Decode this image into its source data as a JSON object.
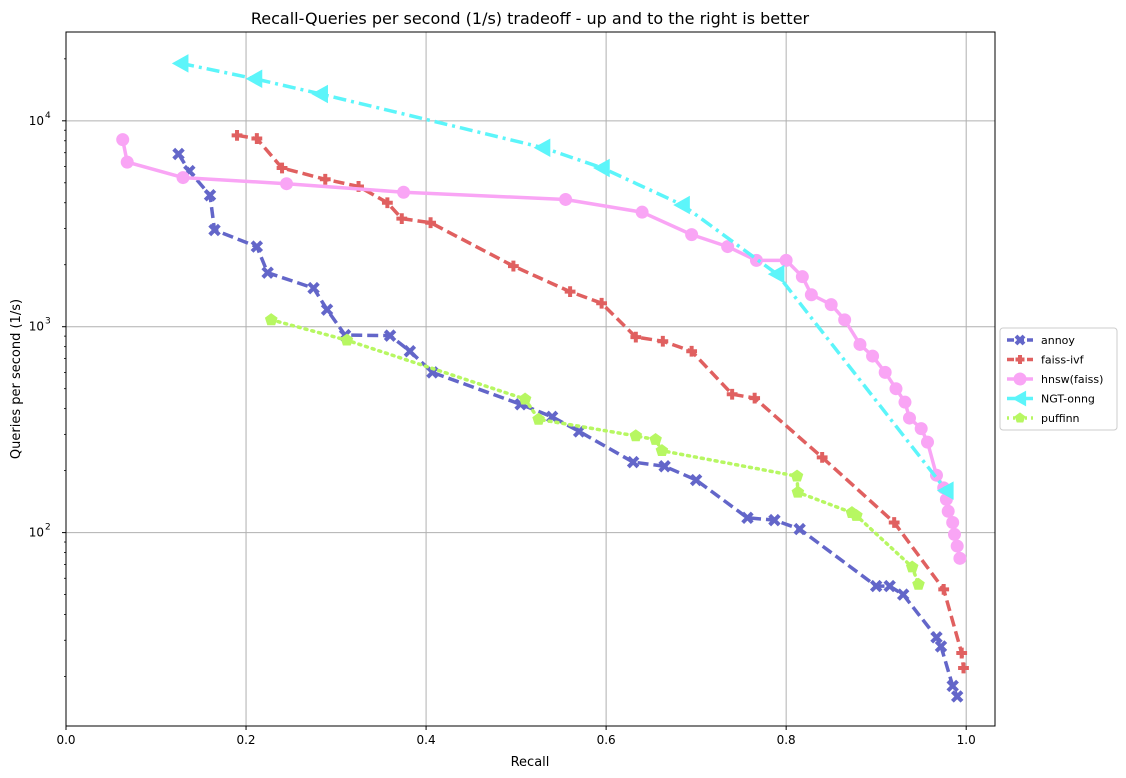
{
  "chart_data": {
    "type": "line",
    "title": "Recall-Queries per second (1/s) tradeoff - up and to the right is better",
    "xlabel": "Recall",
    "ylabel": "Queries per second (1/s)",
    "xlim": [
      0.0,
      1.032
    ],
    "ylim": [
      11.5,
      27000
    ],
    "yscale": "log",
    "grid": true,
    "legend_position": "right outside",
    "x_ticks": [
      {
        "value": 0.0,
        "label": "0.0"
      },
      {
        "value": 0.2,
        "label": "0.2"
      },
      {
        "value": 0.4,
        "label": "0.4"
      },
      {
        "value": 0.6,
        "label": "0.6"
      },
      {
        "value": 0.8,
        "label": "0.8"
      },
      {
        "value": 1.0,
        "label": "1.0"
      }
    ],
    "y_ticks": [
      {
        "value": 100,
        "base": "10",
        "exp": "2"
      },
      {
        "value": 1000,
        "base": "10",
        "exp": "3"
      },
      {
        "value": 10000,
        "base": "10",
        "exp": "4"
      }
    ],
    "series": [
      {
        "name": "annoy",
        "color": "#6366c9",
        "dash": "dashed",
        "marker": "x",
        "points": [
          [
            0.125,
            6900
          ],
          [
            0.137,
            5700
          ],
          [
            0.16,
            4350
          ],
          [
            0.165,
            2950
          ],
          [
            0.212,
            2450
          ],
          [
            0.224,
            1830
          ],
          [
            0.275,
            1540
          ],
          [
            0.29,
            1210
          ],
          [
            0.31,
            910
          ],
          [
            0.36,
            905
          ],
          [
            0.382,
            760
          ],
          [
            0.407,
            600
          ],
          [
            0.505,
            420
          ],
          [
            0.54,
            365
          ],
          [
            0.57,
            310
          ],
          [
            0.63,
            220
          ],
          [
            0.665,
            210
          ],
          [
            0.7,
            180
          ],
          [
            0.757,
            118
          ],
          [
            0.787,
            115
          ],
          [
            0.815,
            104
          ],
          [
            0.9,
            55
          ],
          [
            0.915,
            55
          ],
          [
            0.93,
            50
          ],
          [
            0.967,
            31
          ],
          [
            0.972,
            28
          ],
          [
            0.985,
            18
          ],
          [
            0.99,
            16
          ]
        ]
      },
      {
        "name": "faiss-ivf",
        "color": "#e06060",
        "dash": "dashed",
        "marker": "plus",
        "points": [
          [
            0.19,
            8500
          ],
          [
            0.212,
            8200
          ],
          [
            0.24,
            5900
          ],
          [
            0.288,
            5200
          ],
          [
            0.325,
            4800
          ],
          [
            0.357,
            4000
          ],
          [
            0.373,
            3350
          ],
          [
            0.405,
            3200
          ],
          [
            0.497,
            1970
          ],
          [
            0.56,
            1480
          ],
          [
            0.595,
            1300
          ],
          [
            0.633,
            890
          ],
          [
            0.663,
            850
          ],
          [
            0.695,
            760
          ],
          [
            0.74,
            470
          ],
          [
            0.765,
            450
          ],
          [
            0.84,
            232
          ],
          [
            0.92,
            112
          ],
          [
            0.975,
            53
          ],
          [
            0.995,
            26
          ],
          [
            0.997,
            22
          ]
        ]
      },
      {
        "name": "hnsw(faiss)",
        "color": "#f9a5f5",
        "dash": "solid",
        "marker": "circle",
        "points": [
          [
            0.063,
            8100
          ],
          [
            0.068,
            6300
          ],
          [
            0.13,
            5300
          ],
          [
            0.245,
            4950
          ],
          [
            0.375,
            4500
          ],
          [
            0.555,
            4150
          ],
          [
            0.64,
            3600
          ],
          [
            0.695,
            2800
          ],
          [
            0.735,
            2450
          ],
          [
            0.767,
            2100
          ],
          [
            0.8,
            2100
          ],
          [
            0.818,
            1750
          ],
          [
            0.828,
            1430
          ],
          [
            0.85,
            1280
          ],
          [
            0.865,
            1080
          ],
          [
            0.882,
            820
          ],
          [
            0.896,
            720
          ],
          [
            0.91,
            600
          ],
          [
            0.922,
            500
          ],
          [
            0.932,
            430
          ],
          [
            0.937,
            360
          ],
          [
            0.95,
            320
          ],
          [
            0.957,
            275
          ],
          [
            0.967,
            190
          ],
          [
            0.975,
            165
          ],
          [
            0.978,
            145
          ],
          [
            0.98,
            127
          ],
          [
            0.985,
            112
          ],
          [
            0.987,
            98
          ],
          [
            0.99,
            86
          ],
          [
            0.993,
            75
          ]
        ]
      },
      {
        "name": "NGT-onng",
        "color": "#5cf5fa",
        "dash": "dashdot",
        "marker": "triangle-left",
        "points": [
          [
            0.128,
            19000
          ],
          [
            0.21,
            16000
          ],
          [
            0.283,
            13500
          ],
          [
            0.53,
            7400
          ],
          [
            0.596,
            5900
          ],
          [
            0.685,
            3900
          ],
          [
            0.79,
            1800
          ],
          [
            0.978,
            160
          ]
        ]
      },
      {
        "name": "puffinn",
        "color": "#b7f762",
        "dash": "dotted",
        "marker": "pentagon",
        "points": [
          [
            0.228,
            1080
          ],
          [
            0.312,
            860
          ],
          [
            0.51,
            445
          ],
          [
            0.525,
            355
          ],
          [
            0.633,
            295
          ],
          [
            0.655,
            283
          ],
          [
            0.662,
            250
          ],
          [
            0.812,
            188
          ],
          [
            0.813,
            157
          ],
          [
            0.873,
            125
          ],
          [
            0.878,
            121
          ],
          [
            0.94,
            68
          ],
          [
            0.947,
            56
          ]
        ]
      }
    ]
  }
}
